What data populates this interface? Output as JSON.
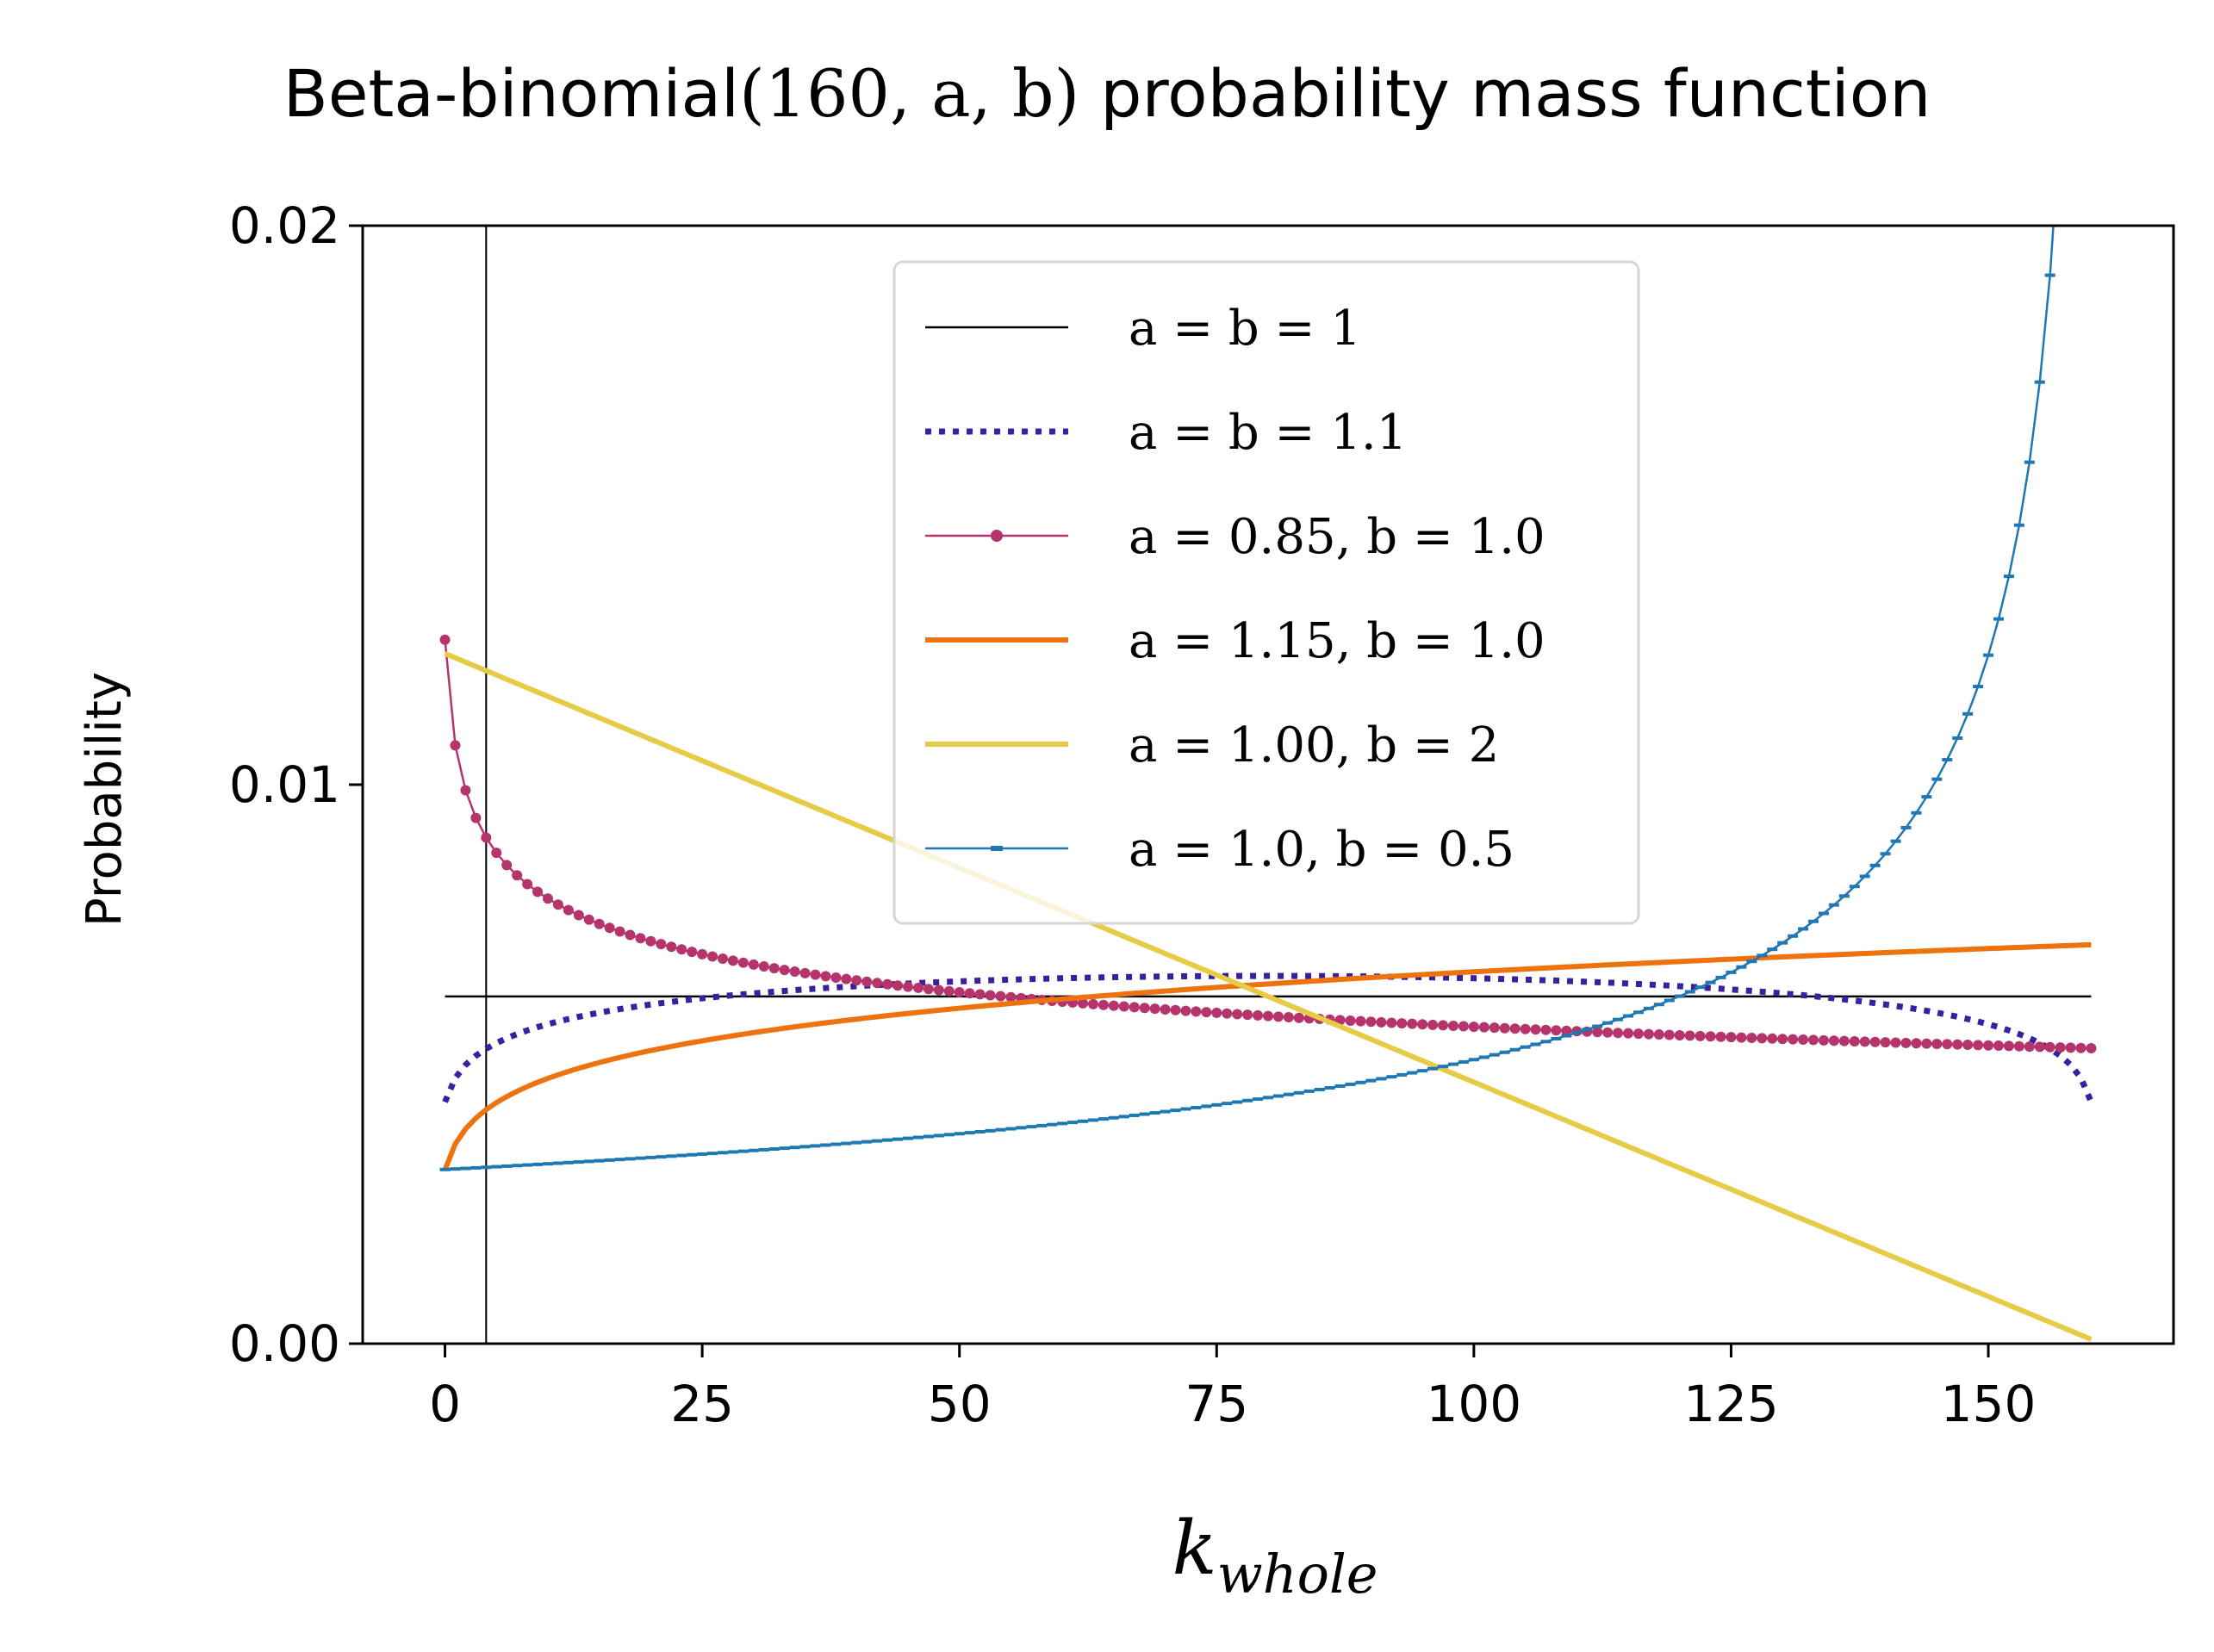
{
  "chart_data": {
    "type": "line",
    "title_prefix": "Beta-binomial",
    "title_math": "(160, a, b)",
    "title_suffix": " probability mass function",
    "xlabel_main": "k",
    "xlabel_sub": "whole",
    "ylabel": "Probability",
    "n": 160,
    "xlim": [
      -8,
      168
    ],
    "ylim": [
      0.0,
      0.02
    ],
    "xticks": [
      0,
      25,
      50,
      75,
      100,
      125,
      150
    ],
    "xtick_labels": [
      "0",
      "25",
      "50",
      "75",
      "100",
      "125",
      "150"
    ],
    "yticks": [
      0.0,
      0.01,
      0.02
    ],
    "ytick_labels": [
      "0.00",
      "0.01",
      "0.02"
    ],
    "vline_x": 4,
    "legend_position": "upper-center",
    "series": [
      {
        "name": "a = b = 1",
        "a": 1.0,
        "b": 1.0,
        "color": "#000000",
        "style": "solid-thin",
        "marker": "none"
      },
      {
        "name": "a = b = 1.1",
        "a": 1.1,
        "b": 1.1,
        "color": "#3b1fa1",
        "style": "dotted",
        "marker": "none"
      },
      {
        "name": "a = 0.85, b = 1.0",
        "a": 0.85,
        "b": 1.0,
        "color": "#b5346b",
        "style": "solid-thin",
        "marker": "dot"
      },
      {
        "name": "a = 1.15, b = 1.0",
        "a": 1.15,
        "b": 1.0,
        "color": "#ed730e",
        "style": "solid-thick",
        "marker": "none"
      },
      {
        "name": "a = 1.00, b = 2",
        "a": 1.0,
        "b": 2.0,
        "color": "#e6cb45",
        "style": "solid-thick",
        "marker": "none"
      },
      {
        "name": "a = 1.0, b = 0.5",
        "a": 1.0,
        "b": 0.5,
        "color": "#1f77b4",
        "style": "solid-thin",
        "marker": "tick"
      }
    ]
  }
}
